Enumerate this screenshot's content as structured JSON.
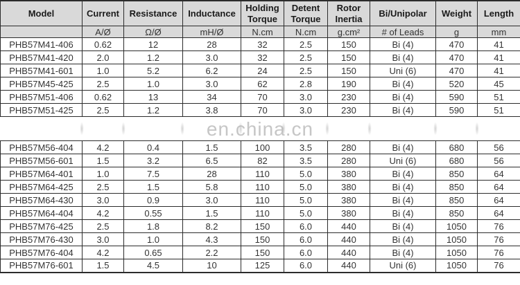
{
  "watermark": {
    "text": "en.china.cn"
  },
  "colors": {
    "header_bg": "#d9d9d9",
    "border": "#2b2b2b",
    "text": "#333333",
    "header_text": "#1a1a1a",
    "watermark": "#c6c6c6"
  },
  "table": {
    "columns": [
      {
        "label": "Model",
        "unit": ""
      },
      {
        "label": "Current",
        "unit": "A/Ø"
      },
      {
        "label": "Resistance",
        "unit": "Ω/Ø"
      },
      {
        "label": "Inductance",
        "unit": "mH/Ø"
      },
      {
        "label": "Holding Torque",
        "unit": "N.cm"
      },
      {
        "label": "Detent Torque",
        "unit": "N.cm"
      },
      {
        "label": "Rotor Inertia",
        "unit": "g.cm²"
      },
      {
        "label": "Bi/Unipolar",
        "unit": "# of Leads"
      },
      {
        "label": "Weight",
        "unit": "g"
      },
      {
        "label": "Length",
        "unit": "mm"
      }
    ],
    "rows_top": [
      [
        "PHB57M41-406",
        "0.62",
        "12",
        "28",
        "32",
        "2.5",
        "150",
        "Bi (4)",
        "470",
        "41"
      ],
      [
        "PHB57M41-420",
        "2.0",
        "1.2",
        "3.0",
        "32",
        "2.5",
        "150",
        "Bi (4)",
        "470",
        "41"
      ],
      [
        "PHB57M41-601",
        "1.0",
        "5.2",
        "6.2",
        "24",
        "2.5",
        "150",
        "Uni (6)",
        "470",
        "41"
      ],
      [
        "PHB57M45-425",
        "2.5",
        "1.0",
        "3.0",
        "62",
        "2.8",
        "190",
        "Bi (4)",
        "520",
        "45"
      ],
      [
        "PHB57M51-406",
        "0.62",
        "13",
        "34",
        "70",
        "3.0",
        "230",
        "Bi (4)",
        "590",
        "51"
      ],
      [
        "PHB57M51-425",
        "2.5",
        "1.2",
        "3.8",
        "70",
        "3.0",
        "230",
        "Bi (4)",
        "590",
        "51"
      ]
    ],
    "rows_bottom": [
      [
        "PHB57M56-404",
        "4.2",
        "0.4",
        "1.5",
        "100",
        "3.5",
        "280",
        "Bi (4)",
        "680",
        "56"
      ],
      [
        "PHB57M56-601",
        "1.5",
        "3.2",
        "6.5",
        "82",
        "3.5",
        "280",
        "Uni (6)",
        "680",
        "56"
      ],
      [
        "PHB57M64-401",
        "1.0",
        "7.5",
        "28",
        "110",
        "5.0",
        "380",
        "Bi (4)",
        "850",
        "64"
      ],
      [
        "PHB57M64-425",
        "2.5",
        "1.5",
        "5.8",
        "110",
        "5.0",
        "380",
        "Bi (4)",
        "850",
        "64"
      ],
      [
        "PHB57M64-430",
        "3.0",
        "0.9",
        "3.0",
        "110",
        "5.0",
        "380",
        "Bi (4)",
        "850",
        "64"
      ],
      [
        "PHB57M64-404",
        "4.2",
        "0.55",
        "1.5",
        "110",
        "5.0",
        "380",
        "Bi (4)",
        "850",
        "64"
      ],
      [
        "PHB57M76-425",
        "2.5",
        "1.8",
        "8.2",
        "150",
        "6.0",
        "440",
        "Bi (4)",
        "1050",
        "76"
      ],
      [
        "PHB57M76-430",
        "3.0",
        "1.0",
        "4.3",
        "150",
        "6.0",
        "440",
        "Bi (4)",
        "1050",
        "76"
      ],
      [
        "PHB57M76-404",
        "4.2",
        "0.65",
        "2.2",
        "150",
        "6.0",
        "440",
        "Bi (4)",
        "1050",
        "76"
      ],
      [
        "PHB57M76-601",
        "1.5",
        "4.5",
        "10",
        "125",
        "6.0",
        "440",
        "Uni (6)",
        "1050",
        "76"
      ]
    ]
  }
}
